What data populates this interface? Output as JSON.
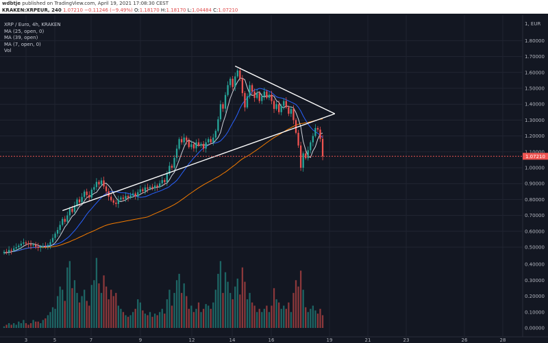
{
  "header": {
    "publisher": "wdbtje",
    "published_text": "published on TradingView.com, April 19, 2021 17:08:30 CEST"
  },
  "symbol_line": {
    "symbol": "KRAKEN:XRPEUR, 240",
    "last": "1.07210",
    "change": "−0.11246 (−9.49%)",
    "ohlc": {
      "O": "1.18170",
      "H": "1.18170",
      "L": "1.04484",
      "C": "1.07210"
    }
  },
  "legend": {
    "title": "XRP / Euro, 4h, KRAKEN",
    "ma1": "MA (25, open, 0)",
    "ma2": "MA (39, open)",
    "ma3": "MA (7, open, 0)",
    "vol": "Vol"
  },
  "colors": {
    "background": "#131722",
    "up": "#26a69a",
    "down": "#ef5350",
    "ma_slow": "#f57c00",
    "ma_mid": "#2962ff",
    "ma_fast": "#d1d4dc",
    "trendline": "#ffffff",
    "last_price": "#ef5350"
  },
  "chart_data": {
    "type": "candlestick",
    "title": "XRP / Euro, 4h, KRAKEN",
    "currency_label": "EUR",
    "price_axis_ticks": [
      "0.00000",
      "0.10000",
      "0.20000",
      "0.30000",
      "0.40000",
      "0.50000",
      "0.60000",
      "0.70000",
      "0.80000",
      "0.90000",
      "1.00000",
      "1.10000",
      "1.20000",
      "1.30000",
      "1.40000",
      "1.50000",
      "1.60000",
      "1.70000",
      "1.80000"
    ],
    "price_axis_current": "1.07210",
    "volume_axis_ticks": [
      "0.00000",
      "0.10000",
      "0.20000",
      "0.30000",
      "0.40000"
    ],
    "x_ticks": [
      "3",
      "5",
      "7",
      "9",
      "12",
      "14",
      "16",
      "19",
      "21",
      "23",
      "26",
      "28"
    ],
    "ylim": [
      0.42,
      1.82
    ],
    "candles": [
      {
        "o": 0.462,
        "c": 0.471,
        "v": 0.01
      },
      {
        "o": 0.471,
        "c": 0.468,
        "v": 0.02
      },
      {
        "o": 0.468,
        "c": 0.482,
        "v": 0.03
      },
      {
        "o": 0.482,
        "c": 0.479,
        "v": 0.02
      },
      {
        "o": 0.479,
        "c": 0.492,
        "v": 0.03
      },
      {
        "o": 0.492,
        "c": 0.5,
        "v": 0.02
      },
      {
        "o": 0.5,
        "c": 0.51,
        "v": 0.04
      },
      {
        "o": 0.51,
        "c": 0.522,
        "v": 0.03
      },
      {
        "o": 0.522,
        "c": 0.53,
        "v": 0.05
      },
      {
        "o": 0.53,
        "c": 0.523,
        "v": 0.03
      },
      {
        "o": 0.523,
        "c": 0.518,
        "v": 0.02
      },
      {
        "o": 0.518,
        "c": 0.511,
        "v": 0.03
      },
      {
        "o": 0.511,
        "c": 0.515,
        "v": 0.05
      },
      {
        "o": 0.515,
        "c": 0.503,
        "v": 0.04
      },
      {
        "o": 0.503,
        "c": 0.496,
        "v": 0.04
      },
      {
        "o": 0.496,
        "c": 0.502,
        "v": 0.03
      },
      {
        "o": 0.502,
        "c": 0.507,
        "v": 0.05
      },
      {
        "o": 0.507,
        "c": 0.505,
        "v": 0.06
      },
      {
        "o": 0.505,
        "c": 0.514,
        "v": 0.08
      },
      {
        "o": 0.514,
        "c": 0.532,
        "v": 0.1
      },
      {
        "o": 0.532,
        "c": 0.558,
        "v": 0.13
      },
      {
        "o": 0.558,
        "c": 0.585,
        "v": 0.12
      },
      {
        "o": 0.585,
        "c": 0.608,
        "v": 0.2
      },
      {
        "o": 0.608,
        "c": 0.64,
        "v": 0.26
      },
      {
        "o": 0.64,
        "c": 0.678,
        "v": 0.24
      },
      {
        "o": 0.678,
        "c": 0.66,
        "v": 0.17
      },
      {
        "o": 0.66,
        "c": 0.7,
        "v": 0.38
      },
      {
        "o": 0.7,
        "c": 0.742,
        "v": 0.42
      },
      {
        "o": 0.742,
        "c": 0.722,
        "v": 0.25
      },
      {
        "o": 0.722,
        "c": 0.762,
        "v": 0.3
      },
      {
        "o": 0.762,
        "c": 0.8,
        "v": 0.22
      },
      {
        "o": 0.8,
        "c": 0.782,
        "v": 0.16
      },
      {
        "o": 0.782,
        "c": 0.816,
        "v": 0.2
      },
      {
        "o": 0.816,
        "c": 0.85,
        "v": 0.24
      },
      {
        "o": 0.85,
        "c": 0.828,
        "v": 0.17
      },
      {
        "o": 0.828,
        "c": 0.812,
        "v": 0.14
      },
      {
        "o": 0.812,
        "c": 0.862,
        "v": 0.27
      },
      {
        "o": 0.862,
        "c": 0.878,
        "v": 0.3
      },
      {
        "o": 0.878,
        "c": 0.911,
        "v": 0.44
      },
      {
        "o": 0.911,
        "c": 0.895,
        "v": 0.28
      },
      {
        "o": 0.895,
        "c": 0.92,
        "v": 0.22
      },
      {
        "o": 0.92,
        "c": 0.882,
        "v": 0.33
      },
      {
        "o": 0.882,
        "c": 0.852,
        "v": 0.26
      },
      {
        "o": 0.852,
        "c": 0.818,
        "v": 0.18
      },
      {
        "o": 0.818,
        "c": 0.795,
        "v": 0.24
      },
      {
        "o": 0.795,
        "c": 0.78,
        "v": 0.2
      },
      {
        "o": 0.78,
        "c": 0.772,
        "v": 0.22
      },
      {
        "o": 0.772,
        "c": 0.8,
        "v": 0.14
      },
      {
        "o": 0.8,
        "c": 0.812,
        "v": 0.12
      },
      {
        "o": 0.812,
        "c": 0.804,
        "v": 0.1
      },
      {
        "o": 0.804,
        "c": 0.822,
        "v": 0.08
      },
      {
        "o": 0.822,
        "c": 0.812,
        "v": 0.07
      },
      {
        "o": 0.812,
        "c": 0.826,
        "v": 0.08
      },
      {
        "o": 0.826,
        "c": 0.838,
        "v": 0.1
      },
      {
        "o": 0.838,
        "c": 0.82,
        "v": 0.12
      },
      {
        "o": 0.82,
        "c": 0.846,
        "v": 0.18
      },
      {
        "o": 0.846,
        "c": 0.864,
        "v": 0.16
      },
      {
        "o": 0.864,
        "c": 0.852,
        "v": 0.11
      },
      {
        "o": 0.852,
        "c": 0.876,
        "v": 0.09
      },
      {
        "o": 0.876,
        "c": 0.868,
        "v": 0.08
      },
      {
        "o": 0.868,
        "c": 0.88,
        "v": 0.1
      },
      {
        "o": 0.88,
        "c": 0.872,
        "v": 0.07
      },
      {
        "o": 0.872,
        "c": 0.888,
        "v": 0.09
      },
      {
        "o": 0.888,
        "c": 0.88,
        "v": 0.08
      },
      {
        "o": 0.88,
        "c": 0.902,
        "v": 0.1
      },
      {
        "o": 0.902,
        "c": 0.922,
        "v": 0.12
      },
      {
        "o": 0.922,
        "c": 0.91,
        "v": 0.09
      },
      {
        "o": 0.91,
        "c": 0.962,
        "v": 0.18
      },
      {
        "o": 0.962,
        "c": 1.012,
        "v": 0.24
      },
      {
        "o": 1.012,
        "c": 1.0,
        "v": 0.14
      },
      {
        "o": 1.0,
        "c": 1.062,
        "v": 0.22
      },
      {
        "o": 1.062,
        "c": 1.12,
        "v": 0.3
      },
      {
        "o": 1.12,
        "c": 1.18,
        "v": 0.34
      },
      {
        "o": 1.18,
        "c": 1.16,
        "v": 0.22
      },
      {
        "o": 1.16,
        "c": 1.19,
        "v": 0.28
      },
      {
        "o": 1.19,
        "c": 1.17,
        "v": 0.2
      },
      {
        "o": 1.17,
        "c": 1.13,
        "v": 0.12
      },
      {
        "o": 1.13,
        "c": 1.148,
        "v": 0.14
      },
      {
        "o": 1.148,
        "c": 1.122,
        "v": 0.1
      },
      {
        "o": 1.122,
        "c": 1.16,
        "v": 0.12
      },
      {
        "o": 1.16,
        "c": 1.14,
        "v": 0.16
      },
      {
        "o": 1.14,
        "c": 1.15,
        "v": 0.1
      },
      {
        "o": 1.15,
        "c": 1.12,
        "v": 0.12
      },
      {
        "o": 1.12,
        "c": 1.16,
        "v": 0.15
      },
      {
        "o": 1.16,
        "c": 1.18,
        "v": 0.14
      },
      {
        "o": 1.18,
        "c": 1.16,
        "v": 0.12
      },
      {
        "o": 1.16,
        "c": 1.19,
        "v": 0.16
      },
      {
        "o": 1.19,
        "c": 1.232,
        "v": 0.24
      },
      {
        "o": 1.232,
        "c": 1.305,
        "v": 0.34
      },
      {
        "o": 1.305,
        "c": 1.4,
        "v": 0.42
      },
      {
        "o": 1.4,
        "c": 1.372,
        "v": 0.22
      },
      {
        "o": 1.372,
        "c": 1.458,
        "v": 0.35
      },
      {
        "o": 1.458,
        "c": 1.52,
        "v": 0.29
      },
      {
        "o": 1.52,
        "c": 1.56,
        "v": 0.22
      },
      {
        "o": 1.56,
        "c": 1.508,
        "v": 0.18
      },
      {
        "o": 1.508,
        "c": 1.575,
        "v": 0.26
      },
      {
        "o": 1.575,
        "c": 1.612,
        "v": 0.31
      },
      {
        "o": 1.612,
        "c": 1.56,
        "v": 0.21
      },
      {
        "o": 1.56,
        "c": 1.47,
        "v": 0.38
      },
      {
        "o": 1.47,
        "c": 1.38,
        "v": 0.29
      },
      {
        "o": 1.38,
        "c": 1.45,
        "v": 0.18
      },
      {
        "o": 1.45,
        "c": 1.52,
        "v": 0.22
      },
      {
        "o": 1.52,
        "c": 1.48,
        "v": 0.16
      },
      {
        "o": 1.48,
        "c": 1.44,
        "v": 0.14
      },
      {
        "o": 1.44,
        "c": 1.47,
        "v": 0.1
      },
      {
        "o": 1.47,
        "c": 1.42,
        "v": 0.12
      },
      {
        "o": 1.42,
        "c": 1.45,
        "v": 0.1
      },
      {
        "o": 1.45,
        "c": 1.48,
        "v": 0.12
      },
      {
        "o": 1.48,
        "c": 1.44,
        "v": 0.14
      },
      {
        "o": 1.44,
        "c": 1.46,
        "v": 0.1
      },
      {
        "o": 1.46,
        "c": 1.42,
        "v": 0.14
      },
      {
        "o": 1.42,
        "c": 1.37,
        "v": 0.25
      },
      {
        "o": 1.37,
        "c": 1.4,
        "v": 0.18
      },
      {
        "o": 1.4,
        "c": 1.35,
        "v": 0.16
      },
      {
        "o": 1.35,
        "c": 1.39,
        "v": 0.12
      },
      {
        "o": 1.39,
        "c": 1.42,
        "v": 0.14
      },
      {
        "o": 1.42,
        "c": 1.38,
        "v": 0.12
      },
      {
        "o": 1.38,
        "c": 1.34,
        "v": 0.16
      },
      {
        "o": 1.34,
        "c": 1.37,
        "v": 0.1
      },
      {
        "o": 1.37,
        "c": 1.3,
        "v": 0.22
      },
      {
        "o": 1.3,
        "c": 1.22,
        "v": 0.3
      },
      {
        "o": 1.22,
        "c": 1.14,
        "v": 0.26
      },
      {
        "o": 1.14,
        "c": 1.0,
        "v": 0.36
      },
      {
        "o": 1.0,
        "c": 1.09,
        "v": 0.24
      },
      {
        "o": 1.09,
        "c": 1.06,
        "v": 0.13
      },
      {
        "o": 1.06,
        "c": 1.11,
        "v": 0.1
      },
      {
        "o": 1.11,
        "c": 1.16,
        "v": 0.12
      },
      {
        "o": 1.16,
        "c": 1.2,
        "v": 0.14
      },
      {
        "o": 1.2,
        "c": 1.25,
        "v": 0.11
      },
      {
        "o": 1.25,
        "c": 1.24,
        "v": 0.09
      },
      {
        "o": 1.24,
        "c": 1.182,
        "v": 0.12
      },
      {
        "o": 1.182,
        "c": 1.072,
        "v": 0.08
      }
    ],
    "trendlines": [
      {
        "from": [
          24,
          0.73
        ],
        "to": [
          136,
          1.34
        ]
      },
      {
        "from": [
          95,
          1.64
        ],
        "to": [
          136,
          1.34
        ]
      }
    ]
  }
}
